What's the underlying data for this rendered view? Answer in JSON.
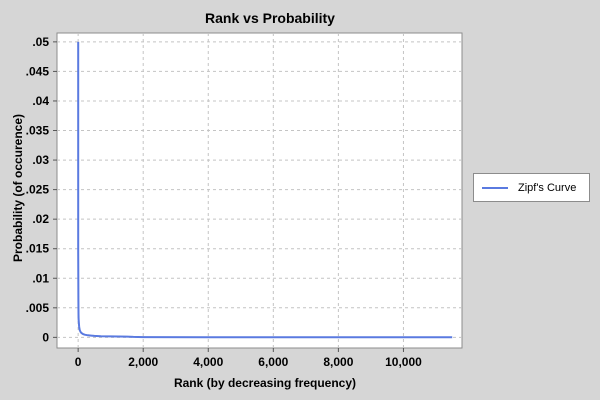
{
  "chart_data": {
    "type": "line",
    "title": "Rank vs Probability",
    "xlabel": "Rank (by decreasing frequency)",
    "ylabel": "Probability (of occurence)",
    "xlim": [
      -650,
      11800
    ],
    "ylim": [
      -0.0018,
      0.0515
    ],
    "xticks": [
      0,
      2000,
      4000,
      6000,
      8000,
      10000
    ],
    "xtick_labels": [
      "0",
      "2,000",
      "4,000",
      "6,000",
      "8,000",
      "10,000"
    ],
    "yticks": [
      0,
      0.005,
      0.01,
      0.015,
      0.02,
      0.025,
      0.03,
      0.035,
      0.04,
      0.045,
      0.05
    ],
    "ytick_labels": [
      "0",
      ".005",
      ".01",
      ".015",
      ".02",
      ".025",
      ".03",
      ".035",
      ".04",
      ".045",
      ".05"
    ],
    "grid": true,
    "legend_position": "right",
    "series": [
      {
        "name": "Zipf's Curve",
        "color": "#5a7ae0",
        "x": [
          1,
          2,
          3,
          5,
          8,
          10,
          15,
          20,
          30,
          40,
          50,
          75,
          100,
          150,
          200,
          300,
          400,
          500,
          700,
          1000,
          1500,
          1700,
          2000,
          4000,
          6000,
          8000,
          10000,
          11500
        ],
        "y": [
          0.05,
          0.015,
          0.0145,
          0.0105,
          0.0062,
          0.004,
          0.0031,
          0.0026,
          0.0019,
          0.0015,
          0.0012,
          0.0009,
          0.00075,
          0.00055,
          0.00045,
          0.00035,
          0.0003,
          0.00025,
          0.0002,
          0.00016,
          0.00013,
          8e-05,
          5e-05,
          3e-05,
          2e-05,
          2e-05,
          1e-05,
          1e-05
        ]
      }
    ]
  }
}
